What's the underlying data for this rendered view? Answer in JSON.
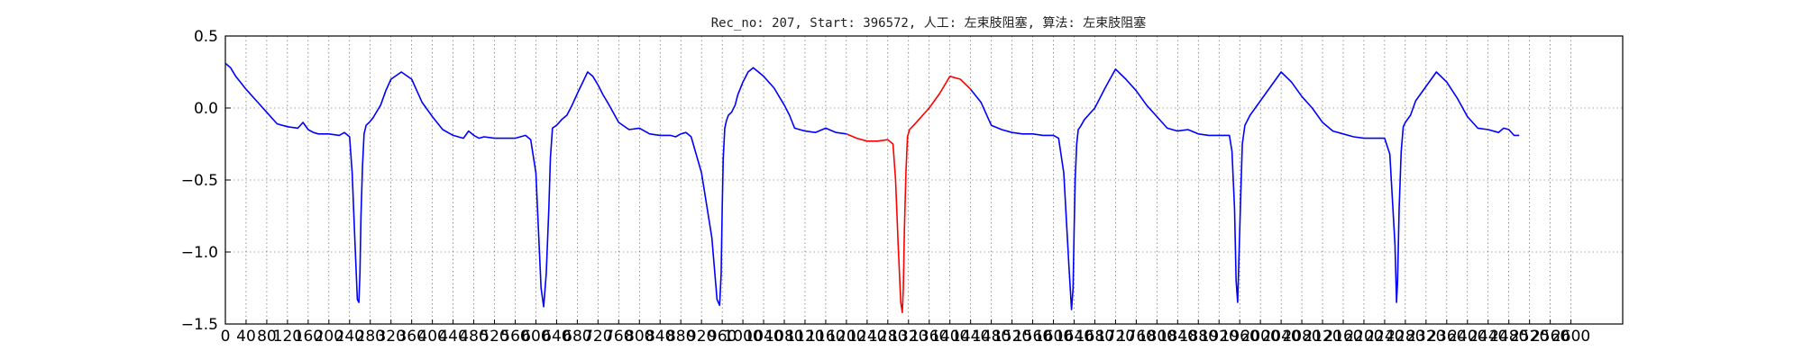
{
  "chart_data": {
    "type": "line",
    "title": "Rec_no: 207, Start: 396572, 人工: 左束肢阻塞, 算法: 左束肢阻塞",
    "xlabel": "",
    "ylabel": "",
    "xlim": [
      0,
      2700
    ],
    "ylim": [
      -1.5,
      0.5
    ],
    "grid": true,
    "yticks": [
      0.5,
      0.0,
      -0.5,
      -1.0,
      -1.5
    ],
    "ytick_labels": [
      "0.5",
      "0.0",
      "−0.5",
      "−1.0",
      "−1.5"
    ],
    "xticks": [
      0,
      40,
      80,
      120,
      160,
      200,
      240,
      280,
      320,
      360,
      400,
      440,
      480,
      520,
      560,
      600,
      640,
      680,
      720,
      760,
      800,
      840,
      880,
      920,
      960,
      1000,
      1040,
      1080,
      1120,
      1160,
      1200,
      1240,
      1280,
      1320,
      1360,
      1400,
      1440,
      1480,
      1520,
      1560,
      1600,
      1640,
      1680,
      1720,
      1760,
      1800,
      1840,
      1880,
      1920,
      1960,
      2000,
      2040,
      2080,
      2120,
      2160,
      2200,
      2240,
      2280,
      2320,
      2360,
      2400,
      2440,
      2480,
      2520,
      2560,
      2600
    ],
    "xtick_labels": [
      "0",
      "40",
      "80",
      "120",
      "160",
      "200",
      "240",
      "280",
      "320",
      "360",
      "400",
      "440",
      "480",
      "520",
      "560",
      "600",
      "640",
      "680",
      "720",
      "760",
      "800",
      "840",
      "880",
      "920",
      "960",
      "1000",
      "1040",
      "1080",
      "1120",
      "1160",
      "1200",
      "1240",
      "1280",
      "1320",
      "1360",
      "1400",
      "1440",
      "1480",
      "1520",
      "1560",
      "1600",
      "1640",
      "1680",
      "1720",
      "1760",
      "1800",
      "1840",
      "1880",
      "1920",
      "1960",
      "2000",
      "2040",
      "2080",
      "2120",
      "2160",
      "2200",
      "2240",
      "2280",
      "2320",
      "2360",
      "2400",
      "2440",
      "2480",
      "2520",
      "2560",
      "2600"
    ],
    "series": [
      {
        "color": "#0000ff",
        "x": [
          0,
          10,
          20,
          40,
          60,
          80,
          100,
          120,
          140,
          150,
          160,
          170,
          180,
          200,
          220,
          230,
          240,
          245,
          250,
          255,
          258,
          260,
          262,
          265,
          268,
          272,
          278,
          285,
          290,
          300,
          310,
          320,
          340,
          360,
          370,
          380,
          400,
          420,
          440,
          460,
          470,
          480,
          490,
          500,
          520,
          540,
          560,
          580,
          590,
          600,
          605,
          610,
          615,
          620,
          625,
          628,
          632,
          640,
          650,
          660,
          670,
          680,
          700,
          710,
          720,
          730,
          740,
          760,
          780,
          800,
          820,
          840,
          860,
          870,
          880,
          890,
          900,
          920,
          940,
          950,
          955,
          958,
          960,
          962,
          965,
          968,
          972,
          978,
          985,
          990,
          1000,
          1010,
          1020,
          1040,
          1060,
          1080,
          1090,
          1100,
          1120,
          1140,
          1160,
          1180,
          1200
        ],
        "y": [
          0.31,
          0.28,
          0.22,
          0.13,
          0.05,
          -0.03,
          -0.11,
          -0.13,
          -0.14,
          -0.1,
          -0.15,
          -0.17,
          -0.18,
          -0.18,
          -0.19,
          -0.17,
          -0.2,
          -0.45,
          -0.9,
          -1.33,
          -1.35,
          -1.15,
          -0.75,
          -0.4,
          -0.18,
          -0.12,
          -0.1,
          -0.07,
          -0.04,
          0.02,
          0.12,
          0.2,
          0.25,
          0.2,
          0.12,
          0.04,
          -0.06,
          -0.15,
          -0.19,
          -0.21,
          -0.16,
          -0.19,
          -0.21,
          -0.2,
          -0.21,
          -0.21,
          -0.21,
          -0.19,
          -0.22,
          -0.45,
          -0.85,
          -1.25,
          -1.38,
          -1.15,
          -0.7,
          -0.35,
          -0.14,
          -0.12,
          -0.08,
          -0.05,
          0.02,
          0.1,
          0.25,
          0.22,
          0.16,
          0.09,
          0.03,
          -0.1,
          -0.15,
          -0.14,
          -0.18,
          -0.19,
          -0.19,
          -0.2,
          -0.18,
          -0.17,
          -0.2,
          -0.45,
          -0.9,
          -1.33,
          -1.37,
          -1.15,
          -0.7,
          -0.35,
          -0.14,
          -0.09,
          -0.05,
          -0.03,
          0.02,
          0.09,
          0.18,
          0.25,
          0.28,
          0.22,
          0.14,
          0.02,
          -0.05,
          -0.14,
          -0.16,
          -0.17,
          -0.14,
          -0.17,
          -0.18
        ]
      },
      {
        "color": "#ff0000",
        "x": [
          1200,
          1220,
          1240,
          1260,
          1280,
          1290,
          1295,
          1300,
          1305,
          1308,
          1310,
          1312,
          1315,
          1318,
          1322,
          1330,
          1340,
          1360,
          1380,
          1400,
          1420,
          1440
        ],
        "y": [
          -0.18,
          -0.21,
          -0.23,
          -0.23,
          -0.22,
          -0.25,
          -0.5,
          -0.95,
          -1.35,
          -1.42,
          -1.25,
          -0.85,
          -0.45,
          -0.2,
          -0.15,
          -0.12,
          -0.08,
          0.0,
          0.1,
          0.22,
          0.2,
          0.13
        ]
      },
      {
        "color": "#0000ff",
        "x": [
          1440,
          1460,
          1480,
          1500,
          1520,
          1540,
          1560,
          1580,
          1600,
          1610,
          1620,
          1630,
          1635,
          1638,
          1640,
          1642,
          1645,
          1648,
          1652,
          1660,
          1680,
          1700,
          1720,
          1740,
          1760,
          1780,
          1800,
          1820,
          1840,
          1860,
          1880,
          1900,
          1920,
          1940,
          1945,
          1950,
          1953,
          1956,
          1958,
          1962,
          1965,
          1970,
          1980,
          2000,
          2020,
          2040,
          2060,
          2080,
          2100,
          2120,
          2140,
          2160,
          2180,
          2200,
          2220,
          2240,
          2250,
          2260,
          2263,
          2265,
          2268,
          2272,
          2276,
          2280,
          2290,
          2300,
          2320,
          2340,
          2360,
          2380,
          2400,
          2420,
          2440,
          2460,
          2470,
          2480,
          2490,
          2500
        ],
        "y": [
          0.13,
          0.04,
          -0.12,
          -0.15,
          -0.17,
          -0.18,
          -0.18,
          -0.19,
          -0.19,
          -0.21,
          -0.45,
          -1.1,
          -1.4,
          -1.25,
          -0.85,
          -0.5,
          -0.25,
          -0.15,
          -0.13,
          -0.08,
          0.0,
          0.14,
          0.27,
          0.2,
          0.12,
          0.02,
          -0.06,
          -0.14,
          -0.16,
          -0.15,
          -0.18,
          -0.19,
          -0.19,
          -0.19,
          -0.3,
          -0.7,
          -1.2,
          -1.35,
          -1.1,
          -0.6,
          -0.25,
          -0.12,
          -0.05,
          0.05,
          0.15,
          0.25,
          0.18,
          0.08,
          0.0,
          -0.1,
          -0.16,
          -0.18,
          -0.2,
          -0.21,
          -0.21,
          -0.21,
          -0.32,
          -0.95,
          -1.35,
          -1.2,
          -0.7,
          -0.3,
          -0.13,
          -0.1,
          -0.05,
          0.05,
          0.15,
          0.25,
          0.18,
          0.07,
          -0.06,
          -0.14,
          -0.15,
          -0.17,
          -0.14,
          -0.15,
          -0.19,
          -0.19
        ]
      }
    ]
  }
}
